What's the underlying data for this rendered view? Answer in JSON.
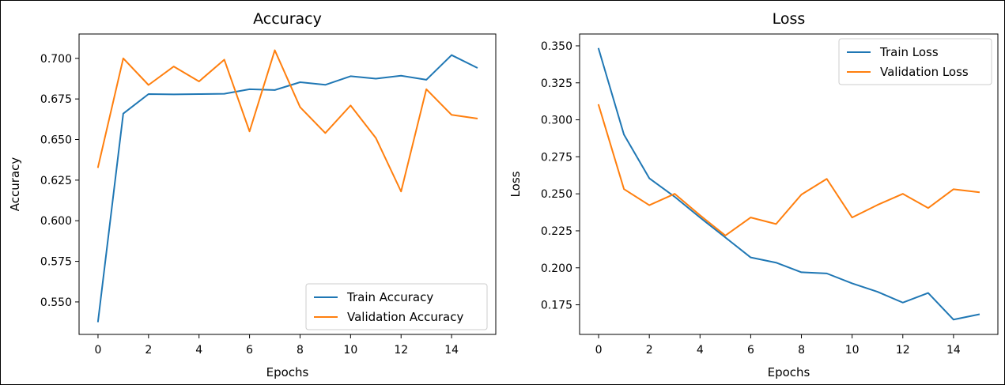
{
  "chart_data": [
    {
      "type": "line",
      "title": "Accuracy",
      "xlabel": "Epochs",
      "ylabel": "Accuracy",
      "xlim": [
        -0.75,
        15.75
      ],
      "ylim": [
        0.53,
        0.715
      ],
      "xticks": [
        0,
        2,
        4,
        6,
        8,
        10,
        12,
        14
      ],
      "yticks": [
        0.55,
        0.575,
        0.6,
        0.625,
        0.65,
        0.675,
        0.7
      ],
      "ytick_labels": [
        "0.550",
        "0.575",
        "0.600",
        "0.625",
        "0.650",
        "0.675",
        "0.700"
      ],
      "grid": false,
      "legend_position": "lower-right",
      "x": [
        0,
        1,
        2,
        3,
        4,
        5,
        6,
        7,
        8,
        9,
        10,
        11,
        12,
        13,
        14,
        15
      ],
      "series": [
        {
          "name": "Train Accuracy",
          "color": "#1f77b4",
          "values": [
            0.538,
            0.666,
            0.678,
            0.6778,
            0.678,
            0.6782,
            0.681,
            0.6805,
            0.6853,
            0.6837,
            0.689,
            0.6875,
            0.6893,
            0.6868,
            0.702,
            0.6943
          ]
        },
        {
          "name": "Validation Accuracy",
          "color": "#ff7f0e",
          "values": [
            0.633,
            0.7,
            0.6836,
            0.695,
            0.6858,
            0.6992,
            0.655,
            0.705,
            0.67,
            0.654,
            0.671,
            0.651,
            0.618,
            0.681,
            0.6652,
            0.663
          ]
        }
      ]
    },
    {
      "type": "line",
      "title": "Loss",
      "xlabel": "Epochs",
      "ylabel": "Loss",
      "xlim": [
        -0.75,
        15.75
      ],
      "ylim": [
        0.155,
        0.358
      ],
      "xticks": [
        0,
        2,
        4,
        6,
        8,
        10,
        12,
        14
      ],
      "yticks": [
        0.175,
        0.2,
        0.225,
        0.25,
        0.275,
        0.3,
        0.325,
        0.35
      ],
      "ytick_labels": [
        "0.175",
        "0.200",
        "0.225",
        "0.250",
        "0.275",
        "0.300",
        "0.325",
        "0.350"
      ],
      "grid": false,
      "legend_position": "upper-right",
      "x": [
        0,
        1,
        2,
        3,
        4,
        5,
        6,
        7,
        8,
        9,
        10,
        11,
        12,
        13,
        14,
        15
      ],
      "series": [
        {
          "name": "Train Loss",
          "color": "#1f77b4",
          "values": [
            0.348,
            0.29,
            0.2605,
            0.248,
            0.234,
            0.2205,
            0.207,
            0.2035,
            0.197,
            0.1962,
            0.1895,
            0.1838,
            0.1765,
            0.183,
            0.165,
            0.1685
          ]
        },
        {
          "name": "Validation Loss",
          "color": "#ff7f0e",
          "values": [
            0.31,
            0.2532,
            0.2423,
            0.25,
            0.2355,
            0.2218,
            0.234,
            0.2296,
            0.2495,
            0.2601,
            0.234,
            0.2425,
            0.25,
            0.2404,
            0.2531,
            0.2511
          ]
        }
      ]
    }
  ]
}
